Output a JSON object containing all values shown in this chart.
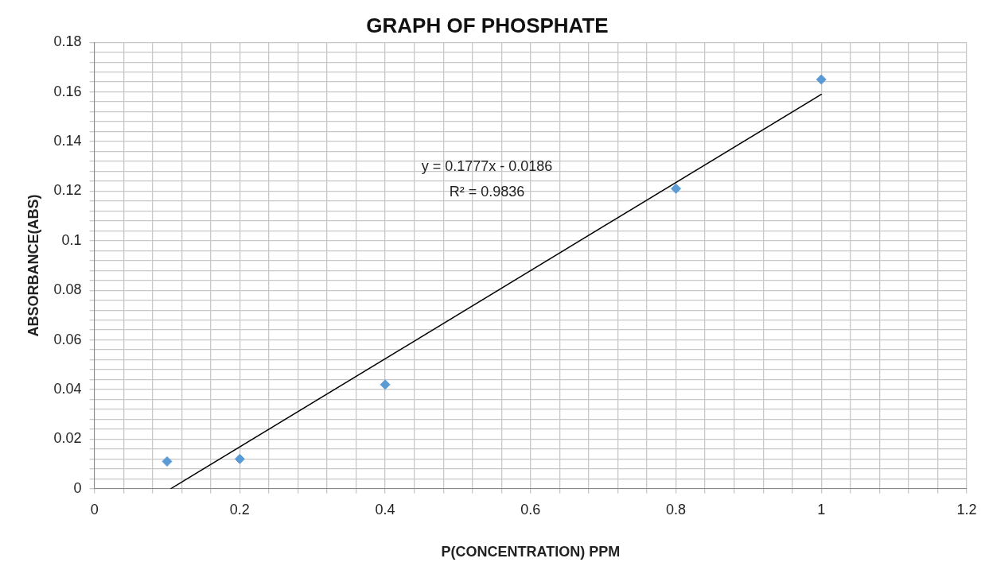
{
  "chart_data": {
    "type": "scatter",
    "title": "GRAPH OF PHOSPHATE",
    "xlabel": "P(CONCENTRATION) PPM",
    "ylabel": "ABSORBANCE(ABS)",
    "annotations": [
      "y = 0.1777x - 0.0186",
      "R² = 0.9836"
    ],
    "series": [
      {
        "type": "scatter",
        "color": "#5b9bd5",
        "marker": "diamond",
        "x": [
          0.1,
          0.2,
          0.4,
          0.8,
          1.0
        ],
        "values": [
          0.011,
          0.012,
          0.042,
          0.121,
          0.165
        ]
      },
      {
        "type": "line",
        "color": "#000000",
        "marker": "none",
        "line_style": "solid",
        "x": [
          0.105,
          1.0
        ],
        "values": [
          0.0,
          0.159
        ]
      }
    ],
    "xlim": [
      0,
      1.2
    ],
    "ylim": [
      0,
      0.18
    ],
    "xticks": [
      0,
      {
        "value": 0.04,
        "label": null
      },
      {
        "value": 0.08,
        "label": null
      },
      {
        "value": 0.12,
        "label": null
      },
      {
        "value": 0.16,
        "label": null
      },
      0.2,
      {
        "value": 0.24,
        "label": null
      },
      {
        "value": 0.28,
        "label": null
      },
      {
        "value": 0.32,
        "label": null
      },
      {
        "value": 0.36,
        "label": null
      },
      0.4,
      {
        "value": 0.44,
        "label": null
      },
      {
        "value": 0.48,
        "label": null
      },
      {
        "value": 0.52,
        "label": null
      },
      {
        "value": 0.56,
        "label": null
      },
      0.6,
      {
        "value": 0.64,
        "label": null
      },
      {
        "value": 0.68,
        "label": null
      },
      {
        "value": 0.72,
        "label": null
      },
      {
        "value": 0.76,
        "label": null
      },
      0.8,
      {
        "value": 0.84,
        "label": null
      },
      {
        "value": 0.88,
        "label": null
      },
      {
        "value": 0.92,
        "label": null
      },
      {
        "value": 0.96,
        "label": null
      },
      1,
      {
        "value": 1.04,
        "label": null
      },
      {
        "value": 1.08,
        "label": null
      },
      {
        "value": 1.12,
        "label": null
      },
      {
        "value": 1.16,
        "label": null
      },
      1.2
    ],
    "yticks": [
      0,
      {
        "value": 0.004,
        "label": null
      },
      {
        "value": 0.008,
        "label": null
      },
      {
        "value": 0.012,
        "label": null
      },
      {
        "value": 0.016,
        "label": null
      },
      0.02,
      {
        "value": 0.024,
        "label": null
      },
      {
        "value": 0.028,
        "label": null
      },
      {
        "value": 0.032,
        "label": null
      },
      {
        "value": 0.036,
        "label": null
      },
      0.04,
      {
        "value": 0.044,
        "label": null
      },
      {
        "value": 0.048,
        "label": null
      },
      {
        "value": 0.052,
        "label": null
      },
      {
        "value": 0.056,
        "label": null
      },
      0.06,
      {
        "value": 0.064,
        "label": null
      },
      {
        "value": 0.068,
        "label": null
      },
      {
        "value": 0.072,
        "label": null
      },
      {
        "value": 0.076,
        "label": null
      },
      0.08,
      {
        "value": 0.084,
        "label": null
      },
      {
        "value": 0.088,
        "label": null
      },
      {
        "value": 0.092,
        "label": null
      },
      {
        "value": 0.096,
        "label": null
      },
      0.1,
      {
        "value": 0.104,
        "label": null
      },
      {
        "value": 0.108,
        "label": null
      },
      {
        "value": 0.112,
        "label": null
      },
      {
        "value": 0.116,
        "label": null
      },
      0.12,
      {
        "value": 0.124,
        "label": null
      },
      {
        "value": 0.128,
        "label": null
      },
      {
        "value": 0.132,
        "label": null
      },
      {
        "value": 0.136,
        "label": null
      },
      0.14,
      {
        "value": 0.144,
        "label": null
      },
      {
        "value": 0.148,
        "label": null
      },
      {
        "value": 0.152,
        "label": null
      },
      {
        "value": 0.156,
        "label": null
      },
      0.16,
      {
        "value": 0.164,
        "label": null
      },
      {
        "value": 0.168,
        "label": null
      },
      {
        "value": 0.172,
        "label": null
      },
      {
        "value": 0.176,
        "label": null
      },
      0.18
    ],
    "grid": true,
    "legend": false
  }
}
